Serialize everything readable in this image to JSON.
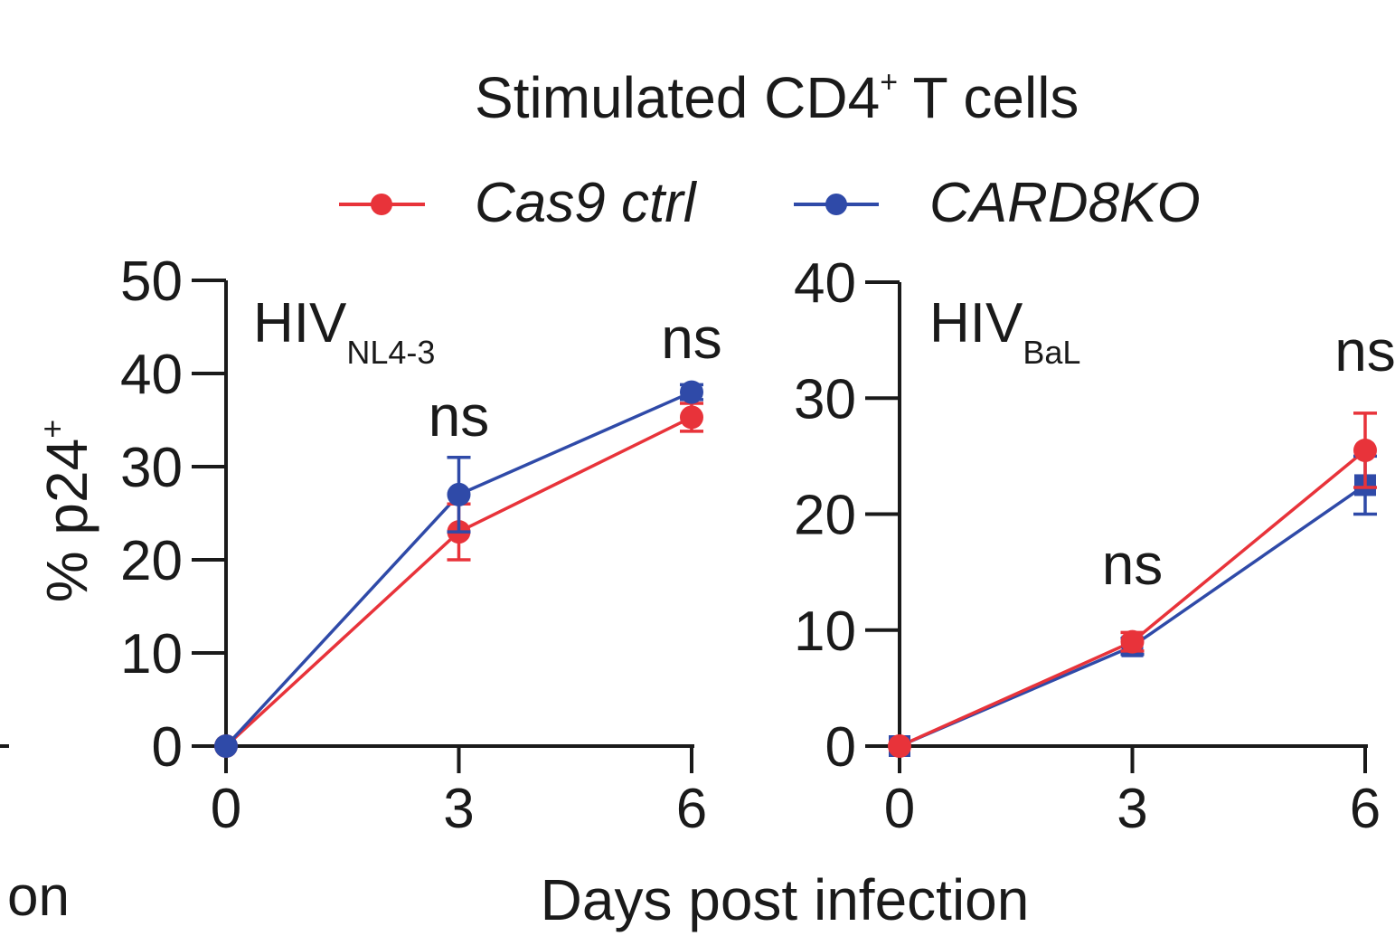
{
  "figure": {
    "title": "Stimulated CD4",
    "title_sup": "+",
    "title_rest": " T cells",
    "xlabel": "Days post infection",
    "ylabel": "% p24",
    "ylabel_sup": "+",
    "clipped_left_text": "on"
  },
  "legend": [
    {
      "name": "Cas9 ctrl",
      "color": "#e8333a"
    },
    {
      "name": "CARD8KO",
      "color": "#2f4aa8"
    }
  ],
  "chart_data": [
    {
      "type": "line",
      "title": "HIV",
      "title_sub": "NL4-3",
      "xlabel": "Days post infection",
      "ylabel": "% p24+",
      "x": [
        0,
        3,
        6
      ],
      "xticks": [
        "0",
        "3",
        "6"
      ],
      "ylim": [
        0,
        50
      ],
      "yticks": [
        "0",
        "10",
        "20",
        "30",
        "40",
        "50"
      ],
      "series": [
        {
          "name": "Cas9 ctrl",
          "color": "#e8333a",
          "marker": "circle",
          "values": [
            0,
            23,
            35.3
          ],
          "err": [
            0,
            3,
            1.5
          ]
        },
        {
          "name": "CARD8KO",
          "color": "#2f4aa8",
          "marker": "circle",
          "values": [
            0,
            27,
            38
          ],
          "err": [
            0,
            4,
            0.8
          ]
        }
      ],
      "annotations": [
        {
          "text": "ns",
          "x": 3
        },
        {
          "text": "ns",
          "x": 6
        }
      ]
    },
    {
      "type": "line",
      "title": "HIV",
      "title_sub": "BaL",
      "xlabel": "Days post infection",
      "ylabel": "% p24+",
      "x": [
        0,
        3,
        6
      ],
      "xticks": [
        "0",
        "3",
        "6"
      ],
      "ylim": [
        0,
        40
      ],
      "yticks": [
        "0",
        "10",
        "20",
        "30",
        "40"
      ],
      "series": [
        {
          "name": "CARD8KO",
          "color": "#2f4aa8",
          "marker": "square",
          "values": [
            0,
            8.6,
            22.5
          ],
          "err": [
            0,
            0.7,
            2.5
          ]
        },
        {
          "name": "Cas9 ctrl",
          "color": "#e8333a",
          "marker": "circle",
          "values": [
            0,
            9,
            25.5
          ],
          "err": [
            0,
            0.8,
            3.2
          ]
        }
      ],
      "annotations": [
        {
          "text": "ns",
          "x": 3
        },
        {
          "text": "ns",
          "x": 6
        }
      ]
    }
  ]
}
